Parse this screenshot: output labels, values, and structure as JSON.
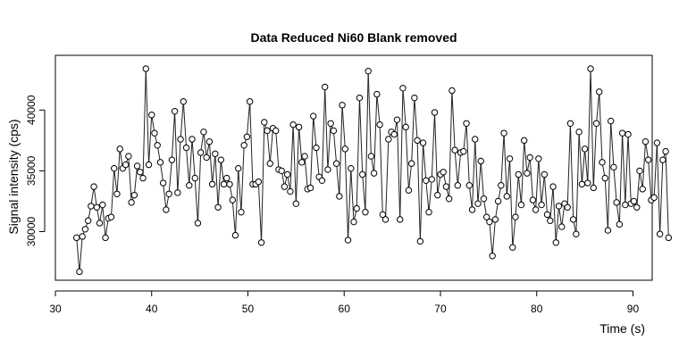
{
  "chart_data": {
    "type": "line",
    "title": "Data Reduced Ni60 Blank removed",
    "xlabel": "Time (s)",
    "ylabel": "Signal intensity (cps)",
    "xlim": [
      30,
      92
    ],
    "ylim": [
      26000,
      44500
    ],
    "x_ticks": [
      30,
      40,
      50,
      60,
      70,
      80,
      90
    ],
    "y_ticks": [
      30000,
      35000,
      40000
    ],
    "x_tick_labels": [
      "30",
      "40",
      "50",
      "60",
      "70",
      "80",
      "90"
    ],
    "y_tick_labels": [
      "30000",
      "35000",
      "40000"
    ],
    "marker": "open-circle",
    "x_start": 32.2,
    "x_step": 0.3,
    "y": [
      29500,
      26700,
      29600,
      30200,
      30900,
      32100,
      33700,
      32000,
      30700,
      32200,
      29500,
      31100,
      31200,
      35200,
      33100,
      36800,
      35200,
      35500,
      36200,
      32400,
      33000,
      35400,
      34900,
      34400,
      43400,
      35500,
      39600,
      38100,
      37100,
      35700,
      34000,
      31800,
      33100,
      35900,
      39900,
      33200,
      37600,
      40700,
      36900,
      33800,
      37600,
      34400,
      30700,
      36500,
      38200,
      36100,
      37400,
      33900,
      36400,
      32000,
      35900,
      33900,
      34400,
      33900,
      32600,
      29700,
      35200,
      31600,
      37100,
      37800,
      40700,
      33900,
      33900,
      34100,
      29100,
      39000,
      38300,
      35600,
      38500,
      38300,
      35100,
      35000,
      33700,
      34700,
      33300,
      38800,
      32300,
      38600,
      35700,
      36200,
      33500,
      33600,
      39500,
      36900,
      34500,
      34200,
      41900,
      35100,
      38900,
      38300,
      35600,
      32900,
      40400,
      36800,
      29300,
      35200,
      30800,
      31900,
      41000,
      34700,
      31600,
      43200,
      36200,
      34800,
      41300,
      38800,
      31400,
      31000,
      37600,
      38200,
      38000,
      39200,
      31000,
      41800,
      38600,
      33400,
      35600,
      41000,
      37500,
      29200,
      37300,
      34200,
      31600,
      34300,
      39800,
      33000,
      34700,
      34900,
      33700,
      32700,
      41600,
      36700,
      33800,
      36500,
      36600,
      38900,
      33800,
      31800,
      37600,
      32300,
      35800,
      32700,
      31200,
      30800,
      28000,
      31000,
      32500,
      33800,
      38100,
      32900,
      36000,
      28700,
      31200,
      34700,
      32200,
      37500,
      34800,
      36100,
      32600,
      31800,
      36000,
      32200,
      34700,
      31400,
      30900,
      33700,
      29100,
      32100,
      30400,
      32300,
      32000,
      38900,
      31000,
      29800,
      38200,
      33900,
      36800,
      34000,
      43400,
      33600,
      38900,
      41500,
      35700,
      34400,
      30100,
      39100,
      35300,
      32400,
      30600,
      38100,
      32200,
      38000,
      32300,
      32500,
      32000,
      35000,
      33500,
      37400,
      35900,
      32600,
      32800,
      37300,
      29800,
      35900,
      36600,
      29500
    ]
  }
}
